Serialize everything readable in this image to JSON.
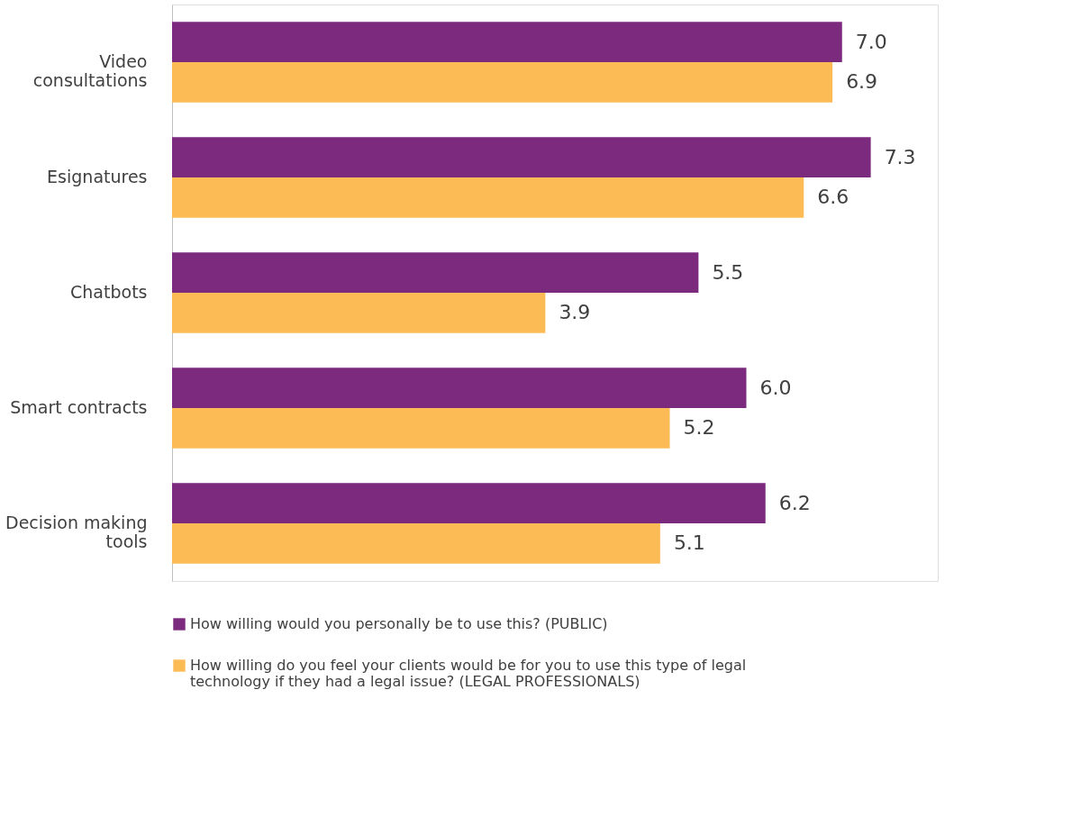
{
  "chart_data": {
    "type": "bar",
    "orientation": "horizontal",
    "categories": [
      "Video consultations",
      "Esignatures",
      "Chatbots",
      "Smart contracts",
      "Decision making tools"
    ],
    "series": [
      {
        "name": "How willing would you personally be to use this? (PUBLIC)",
        "color": "#7b2a7e",
        "values": [
          7.0,
          7.3,
          5.5,
          6.0,
          6.2
        ],
        "value_labels": [
          "7.0",
          "7.3",
          "5.5",
          "6.0",
          "6.2"
        ]
      },
      {
        "name": "How willing do you feel your clients would be for you to use this type of legal technology if they had a legal issue? (LEGAL PROFESSIONALS)",
        "color": "#fdbb56",
        "values": [
          6.9,
          6.6,
          3.9,
          5.2,
          5.1
        ],
        "value_labels": [
          "6.9",
          "6.6",
          "3.9",
          "5.2",
          "5.1"
        ]
      }
    ],
    "xlim": [
      0,
      8
    ],
    "tick_labels": "y",
    "grid": false,
    "legend": "bottom"
  }
}
